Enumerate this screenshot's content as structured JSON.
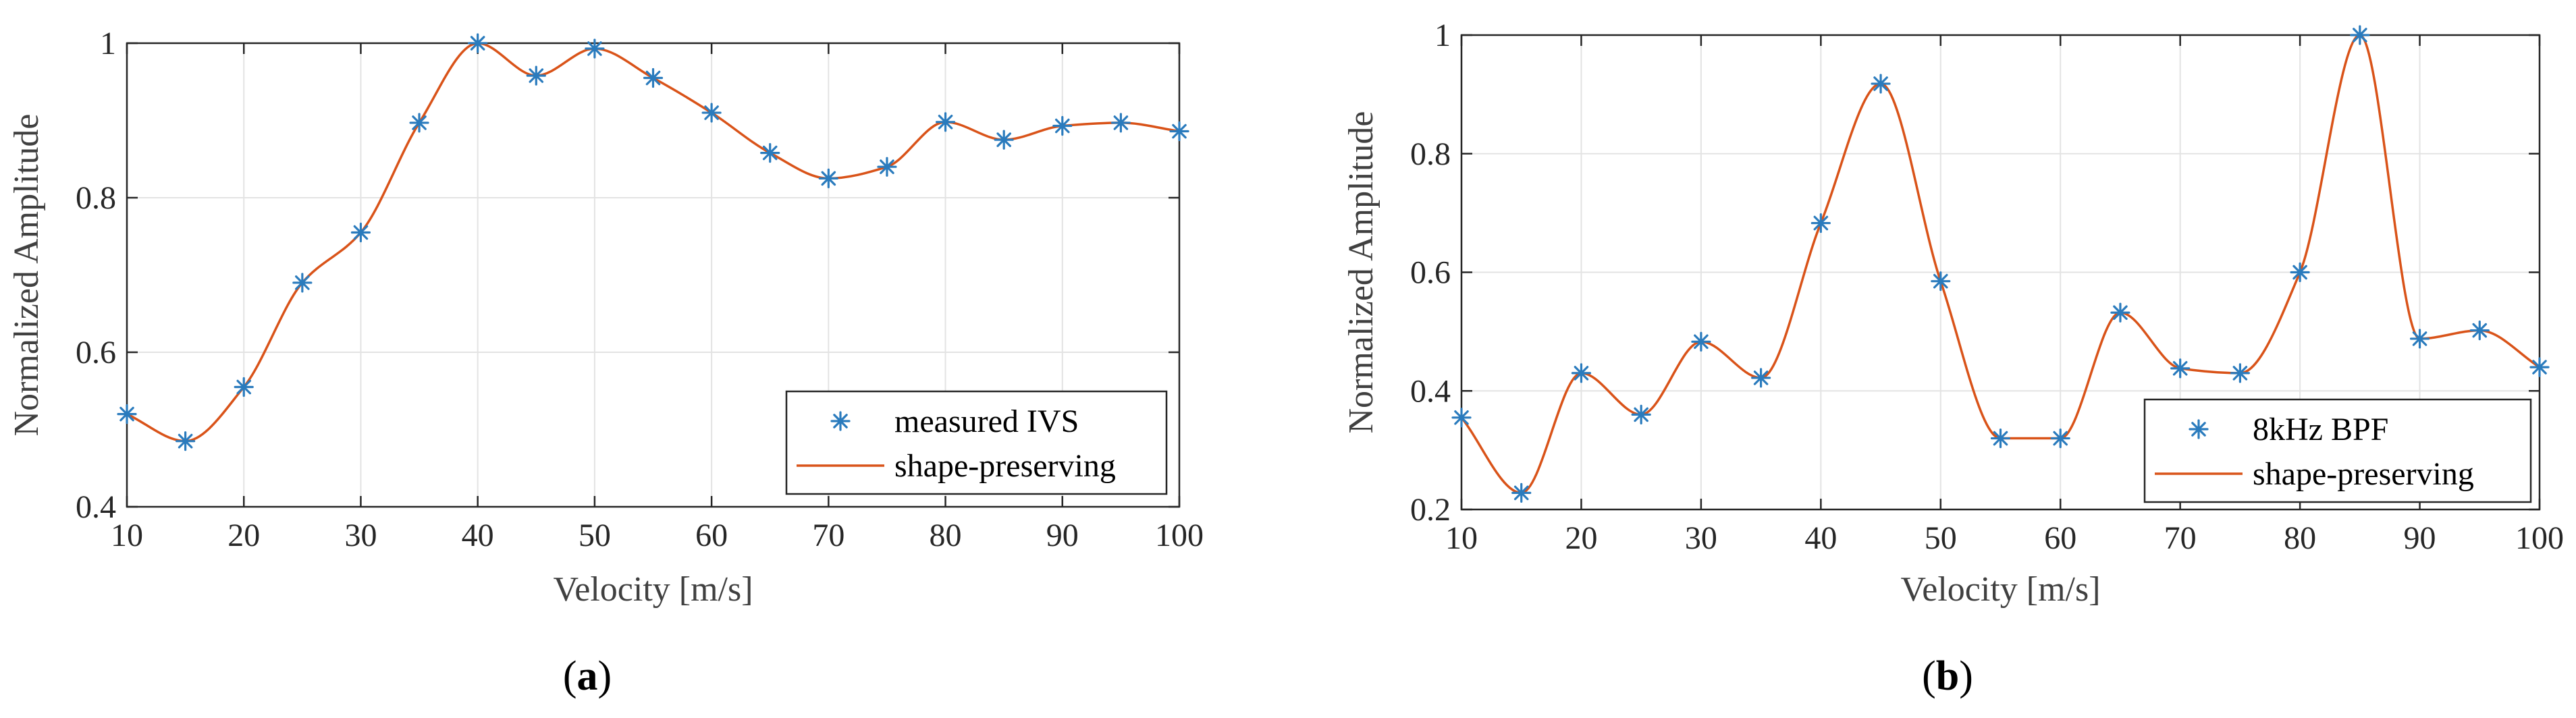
{
  "colors": {
    "marker": "#2a7bbd",
    "line": "#d95319",
    "grid": "#e3e3e3",
    "axis": "#262626"
  },
  "chart_data": [
    {
      "type": "line",
      "caption_open": "(",
      "caption_letter": "a",
      "caption_close": ")",
      "xlabel": "Velocity [m/s]",
      "ylabel": "Normalized Amplitude",
      "xlim": [
        10,
        100
      ],
      "ylim": [
        0.4,
        1.0
      ],
      "xticks": [
        10,
        20,
        30,
        40,
        50,
        60,
        70,
        80,
        90,
        100
      ],
      "yticks": [
        0.4,
        0.6,
        0.8,
        1.0
      ],
      "ytick_labels": [
        "0.4",
        "0.6",
        "0.8",
        "1"
      ],
      "grid": true,
      "legend_position": "bottom-right",
      "x": [
        10,
        15,
        20,
        25,
        30,
        35,
        40,
        45,
        50,
        55,
        60,
        65,
        70,
        75,
        80,
        85,
        90,
        95,
        100
      ],
      "series": [
        {
          "name": "measured IVS",
          "style": "markers",
          "values": [
            0.52,
            0.485,
            0.555,
            0.69,
            0.755,
            0.897,
            1.0,
            0.958,
            0.993,
            0.955,
            0.91,
            0.858,
            0.825,
            0.84,
            0.898,
            0.875,
            0.893,
            0.897,
            0.886
          ]
        },
        {
          "name": "shape-preserving",
          "style": "line",
          "values": [
            0.52,
            0.485,
            0.555,
            0.69,
            0.755,
            0.897,
            1.0,
            0.958,
            0.993,
            0.955,
            0.91,
            0.858,
            0.825,
            0.84,
            0.898,
            0.875,
            0.893,
            0.897,
            0.886
          ]
        }
      ]
    },
    {
      "type": "line",
      "caption_open": "(",
      "caption_letter": "b",
      "caption_close": ")",
      "xlabel": "Velocity [m/s]",
      "ylabel": "Normalized Amplitude",
      "xlim": [
        10,
        100
      ],
      "ylim": [
        0.2,
        1.0
      ],
      "xticks": [
        10,
        20,
        30,
        40,
        50,
        60,
        70,
        80,
        90,
        100
      ],
      "yticks": [
        0.2,
        0.4,
        0.6,
        0.8,
        1.0
      ],
      "ytick_labels": [
        "0.2",
        "0.4",
        "0.6",
        "0.8",
        "1"
      ],
      "grid": true,
      "legend_position": "bottom-right",
      "x": [
        10,
        15,
        20,
        25,
        30,
        35,
        40,
        45,
        50,
        55,
        60,
        65,
        70,
        75,
        80,
        85,
        90,
        95,
        100
      ],
      "series": [
        {
          "name": "8kHz BPF",
          "style": "markers",
          "values": [
            0.355,
            0.228,
            0.43,
            0.36,
            0.483,
            0.422,
            0.683,
            0.918,
            0.585,
            0.32,
            0.32,
            0.532,
            0.438,
            0.43,
            0.6,
            1.0,
            0.488,
            0.502,
            0.44
          ]
        },
        {
          "name": "shape-preserving",
          "style": "line",
          "values": [
            0.355,
            0.228,
            0.43,
            0.36,
            0.483,
            0.422,
            0.683,
            0.918,
            0.585,
            0.32,
            0.32,
            0.532,
            0.438,
            0.43,
            0.6,
            1.0,
            0.488,
            0.502,
            0.44
          ]
        }
      ]
    }
  ]
}
